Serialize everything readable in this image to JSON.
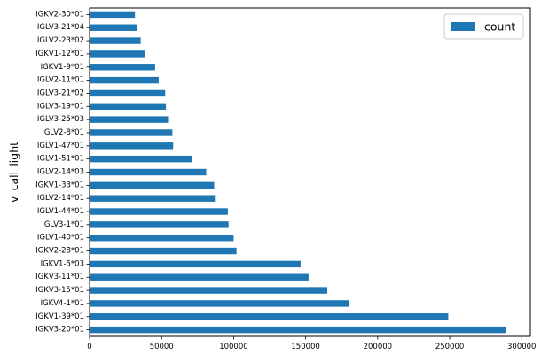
{
  "chart_data": {
    "type": "bar",
    "orientation": "horizontal",
    "ylabel": "v_call_light",
    "xlabel": "",
    "xlim": [
      0,
      306000
    ],
    "xticks": [
      0,
      50000,
      100000,
      150000,
      200000,
      250000,
      300000
    ],
    "xtick_labels": [
      "0",
      "50000",
      "100000",
      "150000",
      "200000",
      "250000",
      "300000"
    ],
    "grid": false,
    "legend_position": "top-right",
    "categories": [
      "IGKV3-20*01",
      "IGKV1-39*01",
      "IGKV4-1*01",
      "IGKV3-15*01",
      "IGKV3-11*01",
      "IGKV1-5*03",
      "IGKV2-28*01",
      "IGLV1-40*01",
      "IGLV3-1*01",
      "IGLV1-44*01",
      "IGLV2-14*01",
      "IGKV1-33*01",
      "IGLV2-14*03",
      "IGLV1-51*01",
      "IGLV1-47*01",
      "IGLV2-8*01",
      "IGLV3-25*03",
      "IGLV3-19*01",
      "IGLV3-21*02",
      "IGLV2-11*01",
      "IGKV1-9*01",
      "IGKV1-12*01",
      "IGLV2-23*02",
      "IGLV3-21*04",
      "IGKV2-30*01"
    ],
    "series": [
      {
        "name": "count",
        "color": "#1f77b4",
        "values": [
          289000,
          249000,
          180000,
          165000,
          152000,
          146500,
          102000,
          100000,
          96500,
          96000,
          87000,
          86500,
          81000,
          71000,
          58000,
          57500,
          54500,
          53000,
          52500,
          48000,
          45500,
          38500,
          35500,
          33000,
          31500
        ]
      }
    ]
  }
}
